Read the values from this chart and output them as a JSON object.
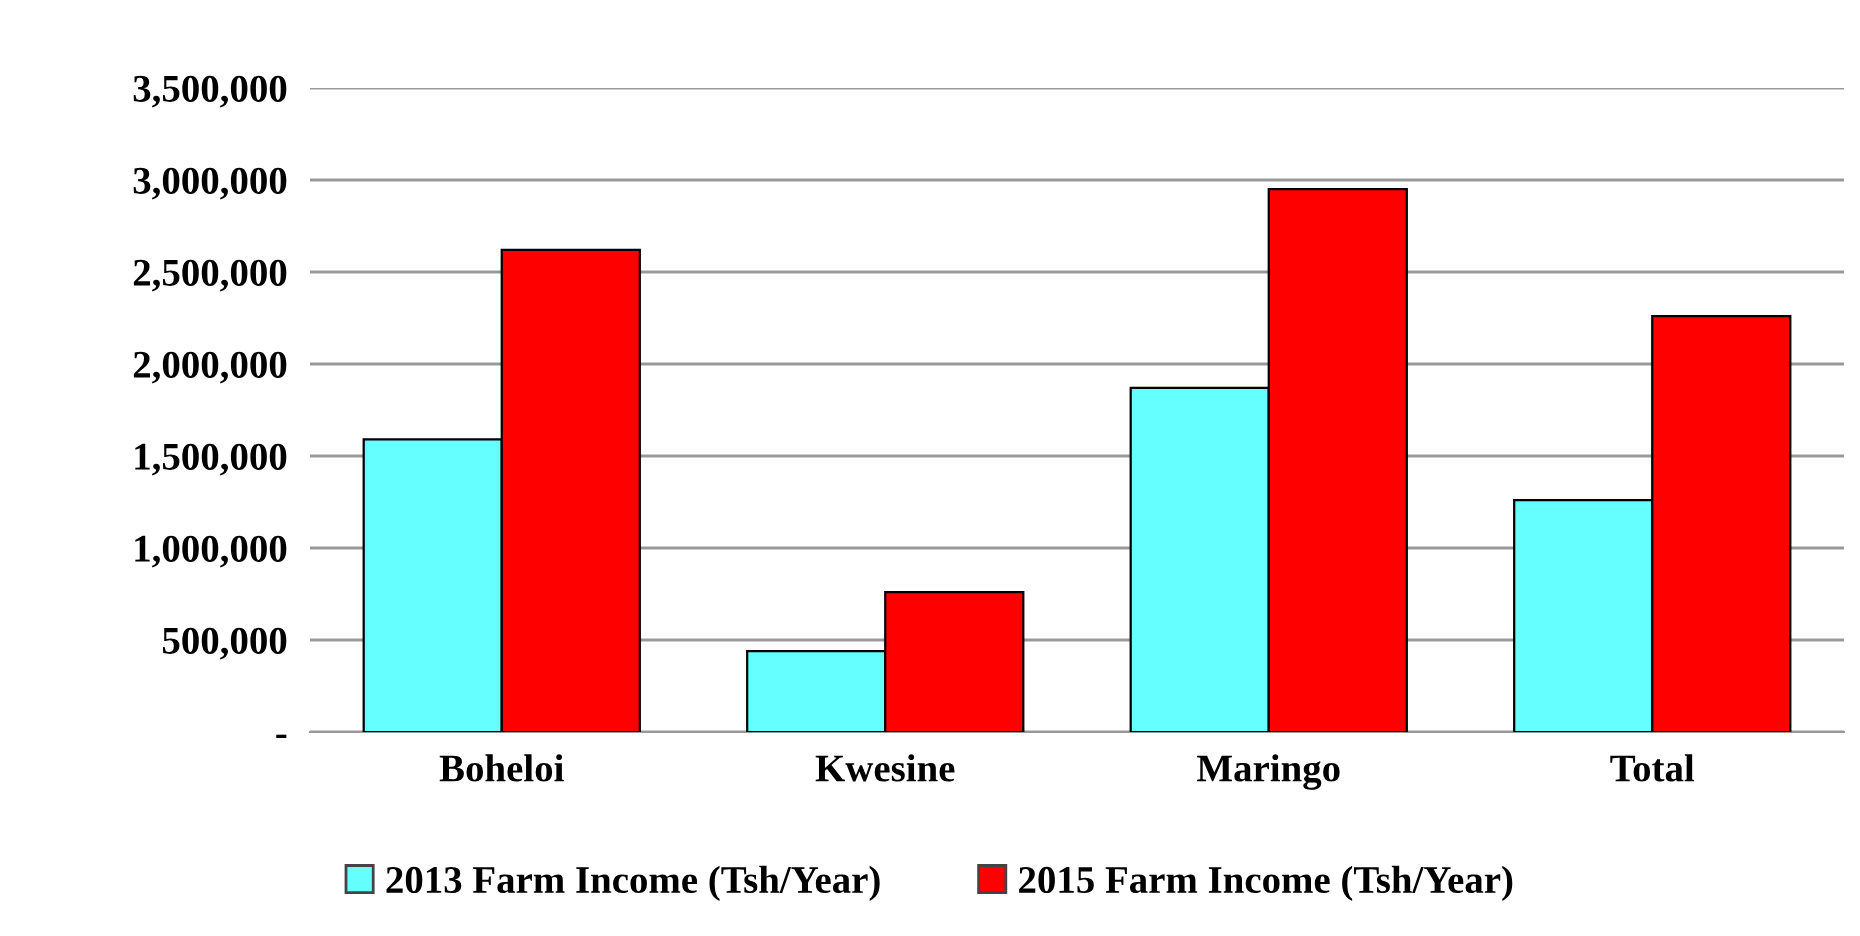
{
  "chart_data": {
    "type": "bar",
    "categories": [
      "Boheloi",
      "Kwesine",
      "Maringo",
      "Total"
    ],
    "series": [
      {
        "name": "2013 Farm Income (Tsh/Year)",
        "color": "#66ffff",
        "values": [
          1590000,
          440000,
          1870000,
          1260000
        ]
      },
      {
        "name": "2015 Farm Income (Tsh/Year)",
        "color": "#ff0000",
        "values": [
          2620000,
          760000,
          2950000,
          2260000
        ]
      }
    ],
    "ylim": [
      0,
      3500000
    ],
    "yticks": [
      {
        "value": 0,
        "label": "-"
      },
      {
        "value": 500000,
        "label": "500,000"
      },
      {
        "value": 1000000,
        "label": "1,000,000"
      },
      {
        "value": 1500000,
        "label": "1,500,000"
      },
      {
        "value": 2000000,
        "label": "2,000,000"
      },
      {
        "value": 2500000,
        "label": "2,500,000"
      },
      {
        "value": 3000000,
        "label": "3,000,000"
      },
      {
        "value": 3500000,
        "label": "3,500,000"
      }
    ],
    "grid": "y",
    "legend": "bottom"
  }
}
